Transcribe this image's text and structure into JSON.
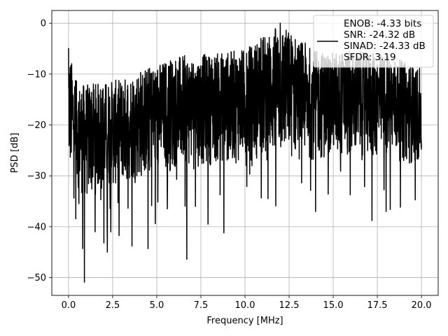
{
  "chart_data": {
    "type": "line",
    "xlabel": "Frequency [MHz]",
    "ylabel": "PSD [dB]",
    "xlim": [
      -0.95,
      20.95
    ],
    "ylim": [
      -53.5,
      2.5
    ],
    "xticks": [
      0.0,
      2.5,
      5.0,
      7.5,
      10.0,
      12.5,
      15.0,
      17.5,
      20.0
    ],
    "xtick_labels": [
      "0.0",
      "2.5",
      "5.0",
      "7.5",
      "10.0",
      "12.5",
      "15.0",
      "17.5",
      "20.0"
    ],
    "yticks": [
      0,
      -10,
      -20,
      -30,
      -40,
      -50
    ],
    "ytick_labels": [
      "0",
      "−10",
      "−20",
      "−30",
      "−40",
      "−50"
    ],
    "grid": true,
    "legend_position": "top-right",
    "series": [
      {
        "name": "ENOB: -4.33 bits\nSNR: -24.32 dB\nSINAD: -24.33 dB\nSFDR: 3.19",
        "color": "#000000",
        "x_range": [
          0,
          20
        ],
        "points_approx": 2048,
        "ylim_series": [
          -50.9,
          0.0
        ],
        "envelope_upper": [
          [
            0.0,
            -5.0
          ],
          [
            0.5,
            -12.0
          ],
          [
            1.0,
            -12.0
          ],
          [
            2.0,
            -11.5
          ],
          [
            3.0,
            -11.0
          ],
          [
            4.0,
            -9.0
          ],
          [
            5.0,
            -8.0
          ],
          [
            6.0,
            -6.5
          ],
          [
            8.0,
            -6.0
          ],
          [
            10.0,
            -5.0
          ],
          [
            12.0,
            0.0
          ],
          [
            14.0,
            -5.5
          ],
          [
            16.0,
            -5.5
          ],
          [
            18.0,
            -6.0
          ],
          [
            20.0,
            -9.0
          ]
        ],
        "envelope_lower": [
          [
            0.0,
            -30.0
          ],
          [
            1.0,
            -35.0
          ],
          [
            2.0,
            -33.0
          ],
          [
            4.0,
            -31.0
          ],
          [
            6.0,
            -29.0
          ],
          [
            8.0,
            -28.0
          ],
          [
            10.0,
            -27.5
          ],
          [
            12.0,
            -27.0
          ],
          [
            14.0,
            -27.0
          ],
          [
            16.0,
            -27.0
          ],
          [
            18.0,
            -27.0
          ],
          [
            20.0,
            -28.0
          ]
        ],
        "notable_points": [
          {
            "x": 0.0,
            "y": -4.9
          },
          {
            "x": 0.9,
            "y": -50.9
          },
          {
            "x": 0.8,
            "y": -44.3
          },
          {
            "x": 1.5,
            "y": -41.0
          },
          {
            "x": 2.2,
            "y": -45.0
          },
          {
            "x": 2.0,
            "y": -43.2
          },
          {
            "x": 3.6,
            "y": -43.8
          },
          {
            "x": 4.5,
            "y": -44.3
          },
          {
            "x": 5.6,
            "y": -36.5
          },
          {
            "x": 6.7,
            "y": -46.4
          },
          {
            "x": 7.9,
            "y": -39.5
          },
          {
            "x": 8.8,
            "y": -41.2
          },
          {
            "x": 12.0,
            "y": 0.0
          },
          {
            "x": 14.0,
            "y": -37.0
          },
          {
            "x": 17.2,
            "y": -38.8
          },
          {
            "x": 18.0,
            "y": -37.0
          }
        ]
      }
    ]
  }
}
